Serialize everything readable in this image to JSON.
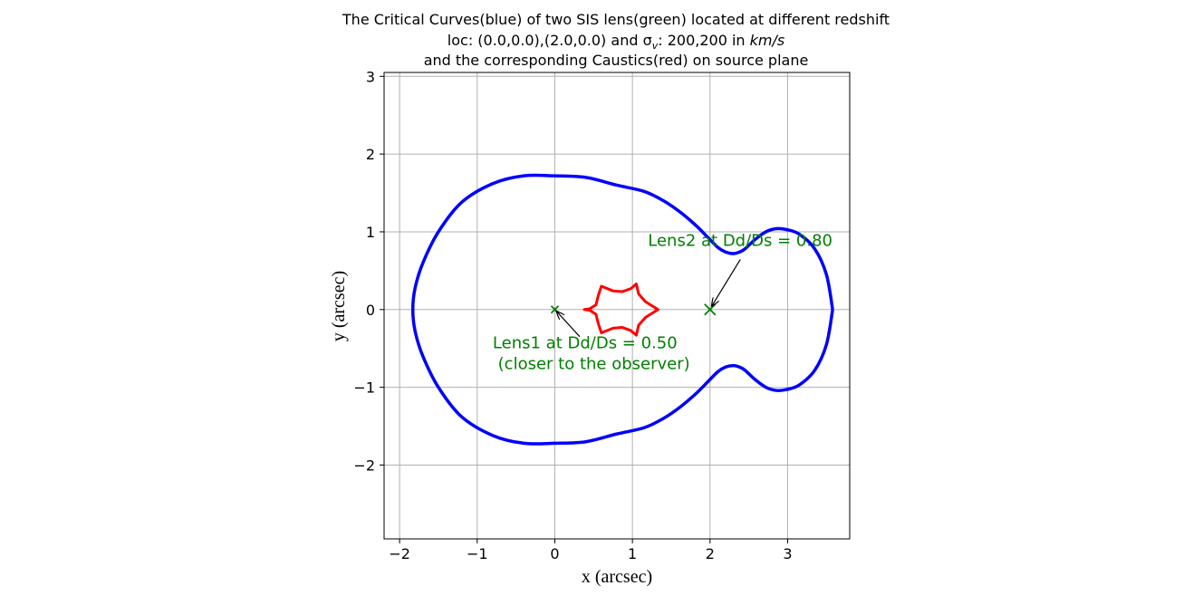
{
  "chart_data": {
    "type": "line",
    "title_lines": [
      "The Critical Curves(blue) of two SIS lens(green) located at different redshift",
      "loc: (0.0,0.0),(2.0,0.0) and σ",
      "v",
      ": 200,200 in ",
      "km/s",
      "and the corresponding Caustics(red) on source plane"
    ],
    "xlabel": "x (arcsec)",
    "ylabel": "y (arcsec)",
    "xlim": [
      -2.2,
      3.8
    ],
    "ylim": [
      -2.95,
      3.05
    ],
    "xticks": [
      -2,
      -1,
      0,
      1,
      2,
      3
    ],
    "yticks": [
      -2,
      -1,
      0,
      1,
      2,
      3
    ],
    "xtick_labels": [
      "−2",
      "−1",
      "0",
      "1",
      "2",
      "3"
    ],
    "ytick_labels": [
      "−2",
      "−1",
      "0",
      "1",
      "2",
      "3"
    ],
    "grid": true,
    "colors": {
      "critical_curve": "#0000ff",
      "caustic": "#ff0000",
      "lens": "#008000",
      "grid": "#b0b0b0"
    },
    "series": [
      {
        "x": [
          3.58,
          3.5,
          3.35,
          3.15,
          2.98,
          2.85,
          2.72,
          2.58,
          2.45,
          2.38,
          2.3,
          2.2,
          2.1,
          1.98,
          1.82,
          1.62,
          1.4,
          1.15,
          0.8,
          0.4,
          0.0,
          -0.4,
          -0.8,
          -1.2,
          -1.5,
          -1.7,
          -1.8,
          -1.83,
          -1.8,
          -1.7,
          -1.5,
          -1.2,
          -0.8,
          -0.4,
          0.0,
          0.4,
          0.8,
          1.15,
          1.4,
          1.62,
          1.82,
          1.98,
          2.1,
          2.2,
          2.3,
          2.38,
          2.45,
          2.58,
          2.72,
          2.85,
          2.98,
          3.15,
          3.35,
          3.5,
          3.58
        ],
        "y": [
          0.0,
          0.45,
          0.78,
          0.97,
          1.03,
          1.04,
          1.0,
          0.9,
          0.78,
          0.74,
          0.72,
          0.74,
          0.8,
          0.92,
          1.08,
          1.25,
          1.4,
          1.52,
          1.6,
          1.7,
          1.72,
          1.72,
          1.62,
          1.38,
          1.0,
          0.6,
          0.28,
          0.0,
          -0.28,
          -0.6,
          -1.0,
          -1.38,
          -1.62,
          -1.72,
          -1.72,
          -1.7,
          -1.6,
          -1.52,
          -1.4,
          -1.25,
          -1.08,
          -0.92,
          -0.8,
          -0.74,
          -0.72,
          -0.74,
          -0.78,
          -0.9,
          -1.0,
          -1.04,
          -1.03,
          -0.97,
          -0.78,
          -0.45,
          0.0
        ]
      },
      {
        "x": [
          1.33,
          1.17,
          1.08,
          1.05,
          0.98,
          0.87,
          0.75,
          0.6,
          0.56,
          0.53,
          0.45,
          0.38,
          0.45,
          0.53,
          0.56,
          0.6,
          0.75,
          0.87,
          0.98,
          1.05,
          1.08,
          1.17,
          1.33
        ],
        "y": [
          0.0,
          -0.1,
          -0.2,
          -0.33,
          -0.27,
          -0.23,
          -0.24,
          -0.3,
          -0.18,
          -0.06,
          -0.01,
          0.0,
          0.01,
          0.06,
          0.18,
          0.3,
          0.24,
          0.23,
          0.27,
          0.33,
          0.2,
          0.1,
          0.0
        ]
      }
    ],
    "lenses": [
      {
        "x": 0.0,
        "y": 0.0
      },
      {
        "x": 2.0,
        "y": 0.0
      }
    ],
    "annotations": [
      {
        "lines": [
          "Lens1 at Dd/Ds = 0.50",
          " (closer to the observer)"
        ],
        "point": [
          0.0,
          0.0
        ],
        "text_at": [
          -0.8,
          -0.5
        ]
      },
      {
        "lines": [
          "Lens2 at Dd/Ds = 0.80"
        ],
        "point": [
          2.0,
          0.0
        ],
        "text_at": [
          1.2,
          0.82
        ]
      }
    ]
  }
}
